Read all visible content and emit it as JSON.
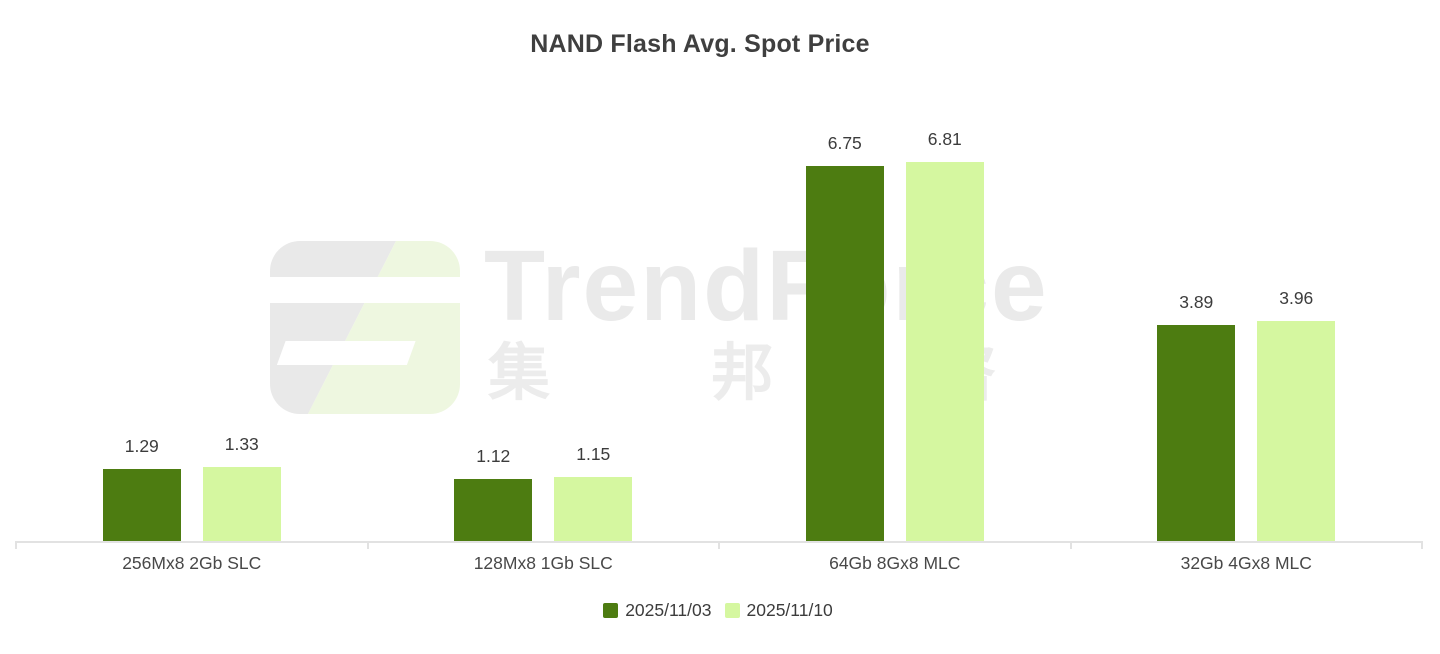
{
  "chart_data": {
    "type": "bar",
    "title": "NAND Flash Avg. Spot Price",
    "categories": [
      "256Mx8 2Gb SLC",
      "128Mx8 1Gb SLC",
      "64Gb 8Gx8 MLC",
      "32Gb 4Gx8 MLC"
    ],
    "series": [
      {
        "name": "2025/11/03",
        "color": "#4d7c11",
        "values": [
          1.29,
          1.12,
          6.75,
          3.89
        ]
      },
      {
        "name": "2025/11/10",
        "color": "#d5f7a0",
        "values": [
          1.33,
          1.15,
          6.81,
          3.96
        ]
      }
    ],
    "value_labels": [
      "1.29",
      "1.33",
      "1.12",
      "1.15",
      "6.75",
      "6.81",
      "3.89",
      "3.96"
    ],
    "ylim": [
      0,
      8
    ],
    "grid": false,
    "legend_position": "bottom",
    "axis_color": "#e2e2e2",
    "title_color": "#3f3f3f",
    "category_label_color": "#484848",
    "value_label_color": "#3c3c3c"
  },
  "watermark": {
    "brand": "TrendForce",
    "chinese": "集 邦 咨 询",
    "brand_color": "#eaeaea",
    "logo_gray": "#e9e9e9",
    "logo_green": "#eef7e0"
  }
}
